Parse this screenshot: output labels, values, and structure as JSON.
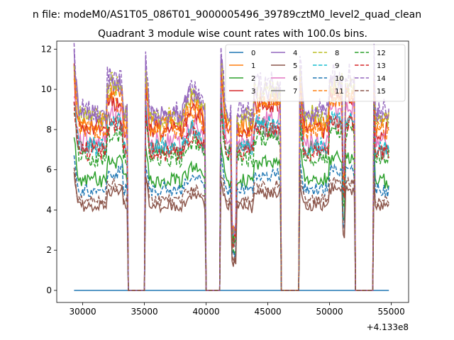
{
  "chart_data": {
    "type": "line",
    "suptitle": "n file: modeM0/AS1T05_086T01_9000005496_39789cztM0_level2_quad_clean",
    "title": "Quadrant 3 module wise count rates with 100.0s bins.",
    "xlabel": "",
    "ylabel": "",
    "x_offset_label": "+4.133e8",
    "xlim": [
      27900,
      56400
    ],
    "ylim": [
      -0.6,
      12.4
    ],
    "xticks": [
      30000,
      35000,
      40000,
      45000,
      50000,
      55000
    ],
    "xtick_labels": [
      "30000",
      "35000",
      "40000",
      "45000",
      "50000",
      "55000"
    ],
    "yticks": [
      0,
      2,
      4,
      6,
      8,
      10,
      12
    ],
    "ytick_labels": [
      "0",
      "2",
      "4",
      "6",
      "8",
      "10",
      "12"
    ],
    "bin_seconds": 100.0,
    "segments": [
      [
        29300,
        33650
      ],
      [
        35050,
        39950
      ],
      [
        41200,
        46000
      ],
      [
        47550,
        52000
      ],
      [
        53600,
        54850
      ]
    ],
    "legend": {
      "placement": "top-right",
      "ncol": 4,
      "entries": [
        "0",
        "1",
        "2",
        "3",
        "4",
        "5",
        "6",
        "7",
        "8",
        "9",
        "10",
        "11",
        "12",
        "13",
        "14",
        "15"
      ]
    },
    "series": [
      {
        "name": "0",
        "color": "#1f77b4",
        "style": "solid",
        "level": 0.0,
        "segment_means": [
          0,
          0,
          0,
          0,
          0
        ]
      },
      {
        "name": "1",
        "color": "#ff7f0e",
        "style": "solid",
        "level": 8.3,
        "segment_means": [
          8.3,
          8.3,
          8.3,
          8.3,
          8.3
        ]
      },
      {
        "name": "2",
        "color": "#2ca02c",
        "style": "solid",
        "level": 5.5,
        "segment_means": [
          5.5,
          5.5,
          5.5,
          5.5,
          5.5
        ]
      },
      {
        "name": "3",
        "color": "#d62728",
        "style": "solid",
        "level": 8.0,
        "segment_means": [
          8.0,
          8.0,
          8.0,
          8.0,
          8.0
        ]
      },
      {
        "name": "4",
        "color": "#9467bd",
        "style": "solid",
        "level": 8.7,
        "segment_means": [
          8.7,
          8.7,
          8.7,
          8.7,
          8.7
        ]
      },
      {
        "name": "5",
        "color": "#8c564b",
        "style": "solid",
        "level": 4.2,
        "segment_means": [
          4.2,
          4.2,
          4.2,
          4.2,
          4.2
        ]
      },
      {
        "name": "6",
        "color": "#e377c2",
        "style": "solid",
        "level": 7.4,
        "segment_means": [
          7.4,
          7.4,
          7.4,
          7.4,
          7.4
        ]
      },
      {
        "name": "7",
        "color": "#7f7f7f",
        "style": "solid",
        "level": 7.0,
        "segment_means": [
          7.0,
          7.0,
          7.0,
          7.0,
          7.0
        ]
      },
      {
        "name": "8",
        "color": "#bcbd22",
        "style": "dashed",
        "level": 8.6,
        "segment_means": [
          8.6,
          8.6,
          8.6,
          8.6,
          8.6
        ]
      },
      {
        "name": "9",
        "color": "#17becf",
        "style": "dashed",
        "level": 7.1,
        "segment_means": [
          7.1,
          7.1,
          7.1,
          7.1,
          7.1
        ]
      },
      {
        "name": "10",
        "color": "#1f77b4",
        "style": "dashed",
        "level": 5.0,
        "segment_means": [
          5.0,
          5.0,
          5.0,
          5.0,
          5.0
        ]
      },
      {
        "name": "11",
        "color": "#ff7f0e",
        "style": "dashed",
        "level": 8.0,
        "segment_means": [
          8.0,
          8.0,
          8.0,
          8.0,
          8.0
        ]
      },
      {
        "name": "12",
        "color": "#2ca02c",
        "style": "dashed",
        "level": 6.6,
        "segment_means": [
          6.6,
          6.6,
          6.6,
          6.6,
          6.6
        ]
      },
      {
        "name": "13",
        "color": "#d62728",
        "style": "dashed",
        "level": 6.9,
        "segment_means": [
          6.9,
          6.9,
          6.9,
          6.9,
          6.9
        ]
      },
      {
        "name": "14",
        "color": "#9467bd",
        "style": "dashed",
        "level": 8.9,
        "segment_means": [
          8.9,
          8.9,
          8.9,
          8.9,
          8.9
        ]
      },
      {
        "name": "15",
        "color": "#8c564b",
        "style": "dashed",
        "level": 4.5,
        "segment_means": [
          4.5,
          4.5,
          4.5,
          4.5,
          4.5
        ]
      }
    ]
  }
}
